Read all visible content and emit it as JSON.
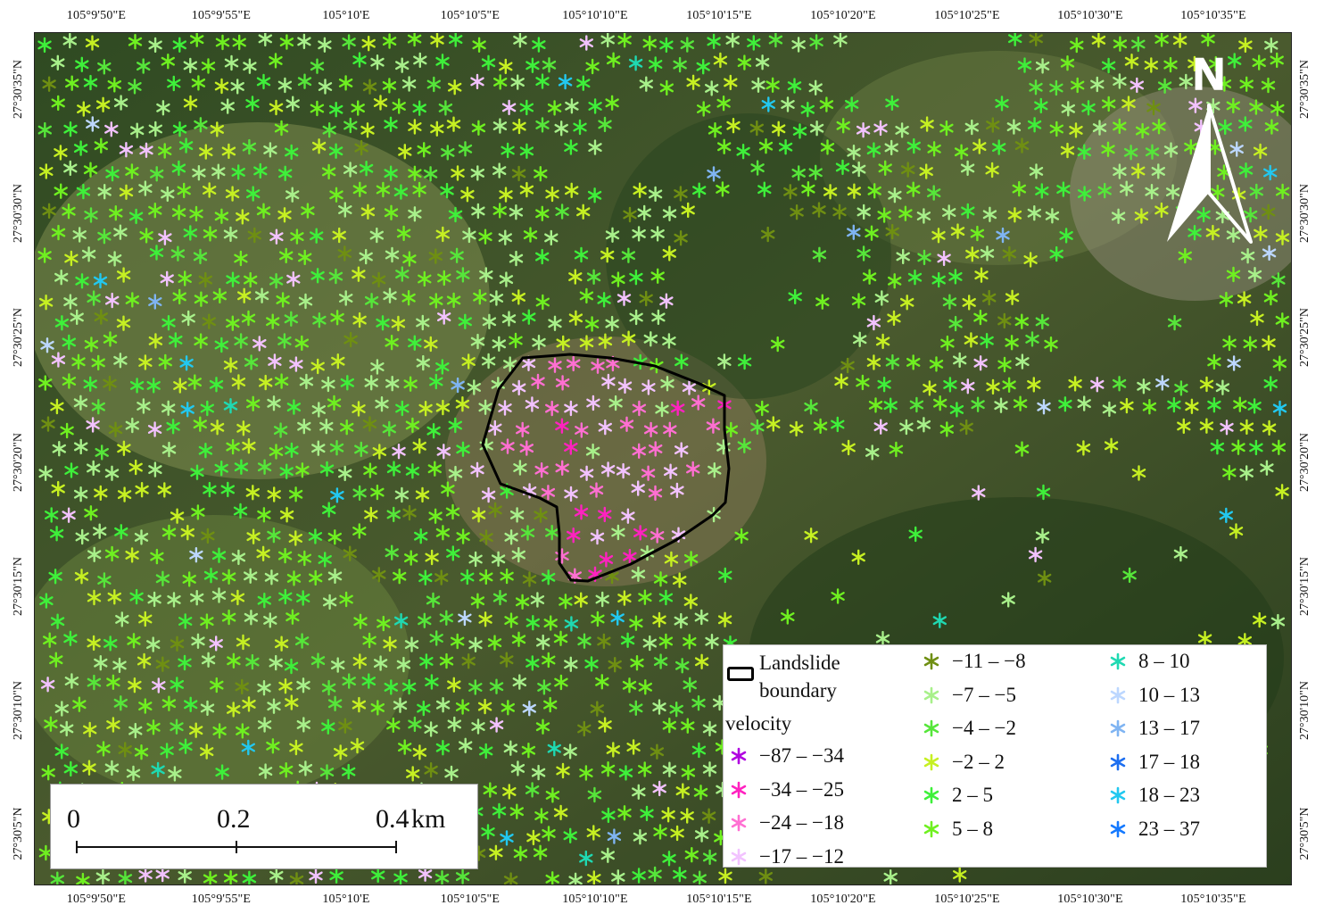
{
  "map": {
    "type": "InSAR deformation velocity point map over satellite imagery",
    "lon_labels_top": [
      "105°9'50\"E",
      "105°9'55\"E",
      "105°10'E",
      "105°10'5\"E",
      "105°10'10\"E",
      "105°10'15\"E",
      "105°10'20\"E",
      "105°10'25\"E",
      "105°10'30\"E",
      "105°10'35\"E"
    ],
    "lon_labels_bottom": [
      "105°9'50\"E",
      "105°9'55\"E",
      "105°10'E",
      "105°10'5\"E",
      "105°10'10\"E",
      "105°10'15\"E",
      "105°10'20\"E",
      "105°10'25\"E",
      "105°10'30\"E",
      "105°10'35\"E"
    ],
    "lat_labels_left": [
      "27°30'35\"N",
      "27°30'30\"N",
      "27°30'25\"N",
      "27°30'20\"N",
      "27°30'15\"N",
      "27°30'10\"N",
      "27°30'5\"N"
    ],
    "lat_labels_right": [
      "27°30'35\"N",
      "27°30'30\"N",
      "27°30'25\"N",
      "27°30'20\"N",
      "27°30'15\"N",
      "27°30'10\"N",
      "27°30'5\"N"
    ],
    "north_label": "N",
    "marker_icon": "asterisk-marker-icon",
    "boundary_color": "#000000"
  },
  "legend": {
    "boundary_label": "Landslide boundary",
    "boundary_label_line1": "Landslide",
    "boundary_label_line2": "boundary",
    "velocity_title": "velocity",
    "classes": [
      {
        "label": "−87  –  −34",
        "color": "#b000e0"
      },
      {
        "label": "−34  –  −25",
        "color": "#ff22c0"
      },
      {
        "label": "−24  –  −18",
        "color": "#ff6fd2"
      },
      {
        "label": "−17  –  −12",
        "color": "#f2c2ff"
      },
      {
        "label": "−11  –  −8",
        "color": "#6f8f12"
      },
      {
        "label": "−7  –  −5",
        "color": "#a8f08a"
      },
      {
        "label": "−4  –  −2",
        "color": "#56e63a"
      },
      {
        "label": "−2  –  2",
        "color": "#c6f022"
      },
      {
        "label": "2  –  5",
        "color": "#3ef03a"
      },
      {
        "label": "5  –  8",
        "color": "#6ff020"
      },
      {
        "label": "8  –  10",
        "color": "#1fd9b2"
      },
      {
        "label": "10  –  13",
        "color": "#bcd7ff"
      },
      {
        "label": "13  –  17",
        "color": "#7fb4f2"
      },
      {
        "label": "17  –  18",
        "color": "#1c6ef0"
      },
      {
        "label": "18  –  23",
        "color": "#22c8f0"
      },
      {
        "label": "23  –  37",
        "color": "#1479ff"
      }
    ]
  },
  "scale_bar": {
    "ticks": [
      "0",
      "0.2",
      "0.4"
    ],
    "unit": "km"
  }
}
